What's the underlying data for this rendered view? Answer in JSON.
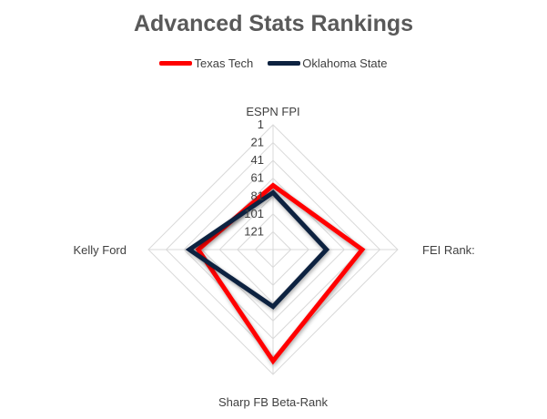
{
  "chart_data": {
    "type": "radar",
    "title": "Advanced Stats Rankings",
    "axes": [
      "ESPN FPI",
      "FEI Rank:",
      "Sharp FB Beta-Rank",
      "Kelly Ford"
    ],
    "tick_labels": [
      "1",
      "21",
      "41",
      "61",
      "81",
      "101",
      "121"
    ],
    "scale": {
      "min": 1,
      "max": 141,
      "reversed": true,
      "step": 20
    },
    "grid": true,
    "legend_position": "top",
    "series": [
      {
        "name": "Texas Tech",
        "color": "#ff0000",
        "values": [
          69,
          41,
          16,
          57
        ]
      },
      {
        "name": "Oklahoma State",
        "color": "#0d2240",
        "values": [
          77,
          81,
          77,
          47
        ]
      }
    ]
  }
}
